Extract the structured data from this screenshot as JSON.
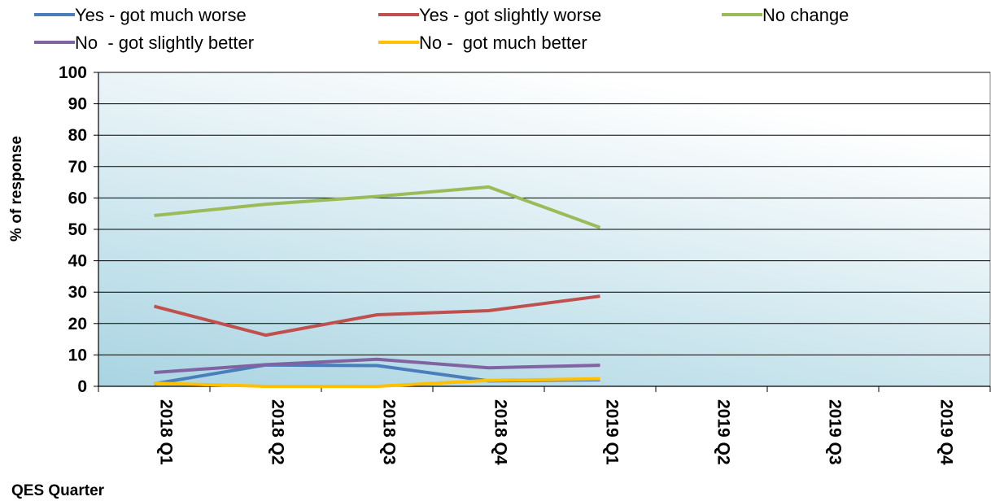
{
  "chart_data": {
    "type": "line",
    "title": "",
    "xlabel": "QES Quarter",
    "ylabel": "% of response",
    "categories": [
      "2018 Q1",
      "2018 Q2",
      "2018 Q3",
      "2018 Q4",
      "2019 Q1",
      "2019 Q2",
      "2019 Q3",
      "2019 Q4"
    ],
    "ylim": [
      0,
      100
    ],
    "yticks": [
      "0",
      "10",
      "20",
      "30",
      "40",
      "50",
      "60",
      "70",
      "80",
      "90",
      "100"
    ],
    "grid": true,
    "legend_position": "top",
    "plot_background": [
      "#a9d4e2",
      "#ffffff"
    ],
    "series": [
      {
        "name": "Yes - got much worse",
        "color": "#4a7ebb",
        "values": [
          0.8,
          6.8,
          6.6,
          1.7,
          2.1,
          null,
          null,
          null
        ]
      },
      {
        "name": "Yes - got slightly worse",
        "color": "#c0504d",
        "values": [
          25.5,
          16.3,
          22.8,
          24.1,
          28.7,
          null,
          null,
          null
        ]
      },
      {
        "name": "No change",
        "color": "#9bbb59",
        "values": [
          54.4,
          58.0,
          60.5,
          63.5,
          50.6,
          null,
          null,
          null
        ]
      },
      {
        "name": "No  - got slightly better",
        "color": "#8064a2",
        "values": [
          4.4,
          6.9,
          8.6,
          5.9,
          6.7,
          null,
          null,
          null
        ]
      },
      {
        "name": "No -  got much better",
        "color": "#ffc000",
        "values": [
          1.0,
          0.0,
          0.0,
          1.9,
          2.4,
          null,
          null,
          null
        ]
      }
    ]
  }
}
